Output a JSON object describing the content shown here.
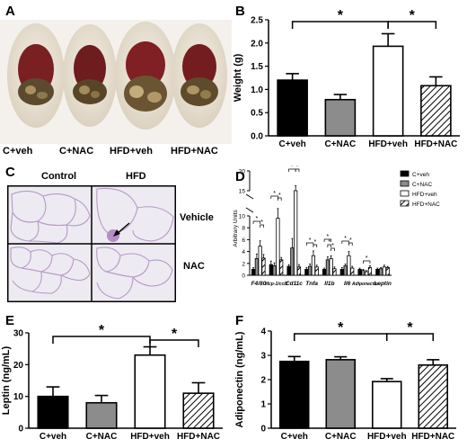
{
  "panels": {
    "a": "A",
    "b": "B",
    "c": "C",
    "d": "D",
    "e": "E",
    "f": "F"
  },
  "photo_labels": [
    "C+veh",
    "C+NAC",
    "HFD+veh",
    "HFD+NAC"
  ],
  "histology": {
    "col_labels": [
      "Control",
      "HFD"
    ],
    "row_labels": [
      "Vehicle",
      "NAC"
    ]
  },
  "colors": {
    "c_veh": "#000000",
    "c_nac": "#8c8c8c",
    "hfd_veh": "#ffffff",
    "hfd_nac": "hatch"
  },
  "chart_data": [
    {
      "id": "B",
      "type": "bar",
      "categories": [
        "C+veh",
        "C+NAC",
        "HFD+veh",
        "HFD+NAC"
      ],
      "values": [
        1.2,
        0.78,
        1.93,
        1.08
      ],
      "errors": [
        0.14,
        0.11,
        0.27,
        0.19
      ],
      "ylabel": "Weight (g)",
      "ylim": [
        0,
        2.5
      ],
      "yticks": [
        "0.0",
        "0.5",
        "1.0",
        "1.5",
        "2.0",
        "2.5"
      ],
      "significance": [
        "*",
        "*"
      ]
    },
    {
      "id": "D",
      "type": "bar",
      "ylabel": "Arbitrary Units",
      "categories": [
        "F4/80",
        "Mcp-1/ccl2",
        "Cd11c",
        "Tnfa",
        "Il1b",
        "Il6",
        "Adiponectin",
        "Leptin"
      ],
      "yticks_low": [
        "0",
        "2",
        "4",
        "6",
        "8",
        "10"
      ],
      "yticks_high": [
        "15",
        "20"
      ],
      "series": [
        {
          "name": "C+veh",
          "values": [
            1.0,
            1.8,
            1.5,
            1.0,
            1.0,
            1.0,
            1.0,
            1.0
          ]
        },
        {
          "name": "C+NAC",
          "values": [
            2.8,
            1.6,
            4.6,
            1.5,
            2.6,
            1.6,
            0.8,
            1.1
          ]
        },
        {
          "name": "HFD+veh",
          "values": [
            4.9,
            9.6,
            15.0,
            3.3,
            2.8,
            3.3,
            0.6,
            1.4
          ]
        },
        {
          "name": "HFD+NAC",
          "values": [
            2.9,
            2.6,
            1.4,
            1.4,
            1.1,
            1.2,
            1.3,
            1.3
          ]
        }
      ],
      "errors": [
        [
          0.3,
          0.6,
          0.3,
          0.3,
          0.2,
          0.3,
          0.2,
          0.2
        ],
        [
          0.8,
          0.5,
          1.6,
          0.4,
          0.5,
          0.3,
          0.2,
          0.2
        ],
        [
          0.9,
          1.3,
          1.3,
          0.8,
          0.5,
          0.7,
          0.2,
          0.3
        ],
        [
          0.6,
          0.4,
          0.4,
          0.3,
          0.3,
          0.3,
          0.3,
          0.2
        ]
      ]
    },
    {
      "id": "E",
      "type": "bar",
      "categories": [
        "C+veh",
        "C+NAC",
        "HFD+veh",
        "HFD+NAC"
      ],
      "values": [
        10.0,
        8.0,
        23.0,
        11.0
      ],
      "errors": [
        3.0,
        2.3,
        2.6,
        3.3
      ],
      "ylabel": "Leptin (ng/mL)",
      "ylim": [
        0,
        30
      ],
      "yticks": [
        "0",
        "10",
        "20",
        "30"
      ],
      "significance": [
        "*",
        "*"
      ]
    },
    {
      "id": "F",
      "type": "bar",
      "categories": [
        "C+veh",
        "C+NAC",
        "HFD+veh",
        "HFD+NAC"
      ],
      "values": [
        2.75,
        2.82,
        1.92,
        2.6
      ],
      "errors": [
        0.2,
        0.12,
        0.12,
        0.22
      ],
      "ylabel": "Adiponectin (ng/mL)",
      "ylim": [
        0,
        4
      ],
      "yticks": [
        "0",
        "1",
        "2",
        "3",
        "4"
      ],
      "significance": [
        "*",
        "*"
      ]
    }
  ]
}
